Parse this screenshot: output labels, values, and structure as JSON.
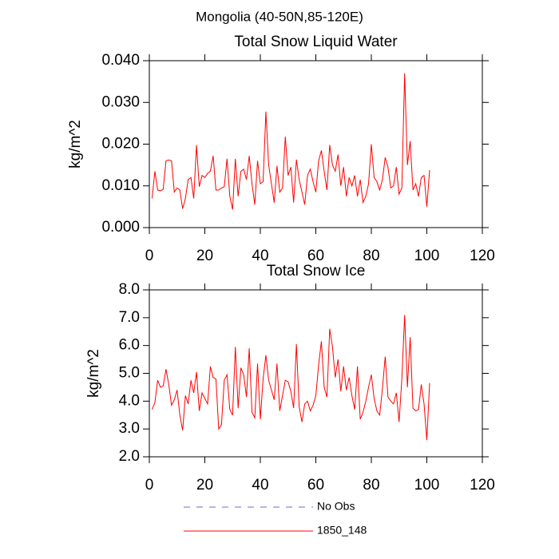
{
  "title": "Mongolia (40-50N,85-120E)",
  "legend": [
    {
      "name": "No Obs",
      "color": "#6b6bd6",
      "dash": "8 8"
    },
    {
      "name": "1850_148",
      "color": "#ff0000"
    }
  ],
  "chart_data": [
    {
      "type": "line",
      "title": "Total Snow Liquid Water",
      "ylabel": "kg/m^2",
      "xlim": [
        0,
        120
      ],
      "xticks": [
        0,
        20,
        40,
        60,
        80,
        100,
        120
      ],
      "ylim": [
        0,
        0.04
      ],
      "yticks": [
        {
          "value": 0,
          "label": "0.000"
        },
        {
          "value": 0.01,
          "label": "0.010"
        },
        {
          "value": 0.02,
          "label": "0.020"
        },
        {
          "value": 0.03,
          "label": "0.030"
        },
        {
          "value": 0.04,
          "label": "0.040"
        }
      ],
      "x": [
        1,
        2,
        3,
        4,
        5,
        6,
        7,
        8,
        9,
        10,
        11,
        12,
        13,
        14,
        15,
        16,
        17,
        18,
        19,
        20,
        21,
        22,
        23,
        24,
        25,
        26,
        27,
        28,
        29,
        30,
        31,
        32,
        33,
        34,
        35,
        36,
        37,
        38,
        39,
        40,
        41,
        42,
        43,
        44,
        45,
        46,
        47,
        48,
        49,
        50,
        51,
        52,
        53,
        54,
        55,
        56,
        57,
        58,
        59,
        60,
        61,
        62,
        63,
        64,
        65,
        66,
        67,
        68,
        69,
        70,
        71,
        72,
        73,
        74,
        75,
        76,
        77,
        78,
        79,
        80,
        81,
        82,
        83,
        84,
        85,
        86,
        87,
        88,
        89,
        90,
        91,
        92,
        93,
        94,
        95,
        96,
        97,
        98,
        99,
        100,
        101
      ],
      "series": [
        {
          "color": "#ff0000",
          "values": [
            0.007,
            0.0135,
            0.009,
            0.0088,
            0.0092,
            0.016,
            0.0162,
            0.016,
            0.0085,
            0.0095,
            0.009,
            0.0045,
            0.007,
            0.0115,
            0.012,
            0.007,
            0.0198,
            0.0098,
            0.0125,
            0.012,
            0.013,
            0.0135,
            0.0172,
            0.009,
            0.009,
            0.0095,
            0.0098,
            0.0165,
            0.0075,
            0.0043,
            0.0165,
            0.0075,
            0.0135,
            0.014,
            0.0115,
            0.0172,
            0.0105,
            0.0055,
            0.016,
            0.0105,
            0.011,
            0.0278,
            0.015,
            0.0105,
            0.006,
            0.0148,
            0.0085,
            0.0095,
            0.0218,
            0.0125,
            0.0145,
            0.006,
            0.0163,
            0.0115,
            0.0085,
            0.0055,
            0.0125,
            0.014,
            0.011,
            0.0085,
            0.016,
            0.0185,
            0.0135,
            0.009,
            0.0198,
            0.015,
            0.0135,
            0.0175,
            0.01,
            0.0145,
            0.0075,
            0.012,
            0.01,
            0.0125,
            0.0075,
            0.0115,
            0.006,
            0.0075,
            0.0105,
            0.02,
            0.012,
            0.011,
            0.009,
            0.0115,
            0.0168,
            0.0145,
            0.0095,
            0.01,
            0.0145,
            0.008,
            0.0095,
            0.037,
            0.015,
            0.0207,
            0.009,
            0.0105,
            0.0075,
            0.012,
            0.0125,
            0.005,
            0.0138
          ]
        }
      ]
    },
    {
      "type": "line",
      "title": "Total Snow Ice",
      "ylabel": "kg/m^2",
      "xlim": [
        0,
        120
      ],
      "xticks": [
        0,
        20,
        40,
        60,
        80,
        100,
        120
      ],
      "ylim": [
        2,
        8
      ],
      "yticks": [
        {
          "value": 2,
          "label": "2.0"
        },
        {
          "value": 3,
          "label": "3.0"
        },
        {
          "value": 4,
          "label": "4.0"
        },
        {
          "value": 5,
          "label": "5.0"
        },
        {
          "value": 6,
          "label": "6.0"
        },
        {
          "value": 7,
          "label": "7.0"
        },
        {
          "value": 8,
          "label": "8.0"
        }
      ],
      "x": [
        1,
        2,
        3,
        4,
        5,
        6,
        7,
        8,
        9,
        10,
        11,
        12,
        13,
        14,
        15,
        16,
        17,
        18,
        19,
        20,
        21,
        22,
        23,
        24,
        25,
        26,
        27,
        28,
        29,
        30,
        31,
        32,
        33,
        34,
        35,
        36,
        37,
        38,
        39,
        40,
        41,
        42,
        43,
        44,
        45,
        46,
        47,
        48,
        49,
        50,
        51,
        52,
        53,
        54,
        55,
        56,
        57,
        58,
        59,
        60,
        61,
        62,
        63,
        64,
        65,
        66,
        67,
        68,
        69,
        70,
        71,
        72,
        73,
        74,
        75,
        76,
        77,
        78,
        79,
        80,
        81,
        82,
        83,
        84,
        85,
        86,
        87,
        88,
        89,
        90,
        91,
        92,
        93,
        94,
        95,
        96,
        97,
        98,
        99,
        100,
        101
      ],
      "series": [
        {
          "color": "#ff0000",
          "values": [
            3.7,
            3.95,
            4.75,
            4.5,
            4.55,
            5.15,
            4.6,
            3.85,
            4.05,
            4.4,
            3.5,
            2.95,
            4.2,
            3.9,
            4.75,
            4.3,
            5.05,
            3.65,
            4.3,
            4.1,
            3.9,
            5.25,
            4.85,
            4.8,
            3.0,
            3.15,
            4.75,
            4.95,
            3.7,
            3.5,
            5.95,
            3.75,
            5.2,
            4.95,
            4.15,
            5.9,
            3.6,
            3.4,
            5.35,
            3.35,
            4.8,
            5.65,
            4.75,
            4.4,
            4.05,
            5.35,
            3.65,
            4.2,
            4.75,
            4.7,
            4.35,
            3.75,
            6.05,
            3.8,
            3.25,
            3.9,
            4.0,
            3.65,
            3.85,
            4.2,
            5.3,
            6.15,
            4.5,
            4.15,
            6.6,
            5.95,
            4.85,
            5.5,
            4.35,
            5.25,
            4.4,
            4.85,
            4.2,
            3.7,
            5.25,
            3.35,
            3.6,
            4.0,
            4.5,
            4.95,
            4.1,
            3.65,
            3.5,
            4.45,
            5.6,
            4.15,
            4.0,
            3.9,
            4.3,
            3.25,
            4.8,
            7.1,
            4.5,
            6.3,
            3.75,
            3.65,
            3.7,
            4.6,
            3.9,
            2.6,
            4.65
          ]
        }
      ]
    }
  ]
}
